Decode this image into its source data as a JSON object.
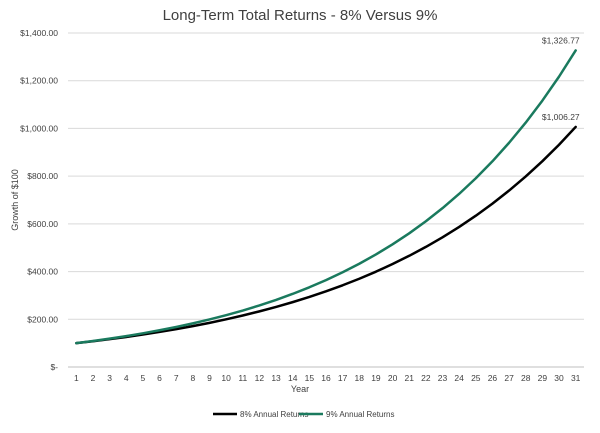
{
  "chart_data": {
    "type": "line",
    "title": "Long-Term Total Returns - 8% Versus 9%",
    "xlabel": "Year",
    "ylabel": "Growth of $100",
    "x": [
      1,
      2,
      3,
      4,
      5,
      6,
      7,
      8,
      9,
      10,
      11,
      12,
      13,
      14,
      15,
      16,
      17,
      18,
      19,
      20,
      21,
      22,
      23,
      24,
      25,
      26,
      27,
      28,
      29,
      30,
      31
    ],
    "ylim": [
      0,
      1400
    ],
    "yticks": [
      0,
      200,
      400,
      600,
      800,
      1000,
      1200,
      1400
    ],
    "ytick_labels": [
      "$-",
      "$200.00",
      "$400.00",
      "$600.00",
      "$800.00",
      "$1,000.00",
      "$1,200.00",
      "$1,400.00"
    ],
    "grid": true,
    "legend_position": "bottom-center",
    "series": [
      {
        "name": "8% Annual Returns",
        "color": "#000000",
        "values": [
          100.0,
          108.0,
          116.64,
          125.97,
          136.05,
          146.93,
          158.69,
          171.38,
          185.09,
          199.9,
          215.89,
          233.16,
          251.82,
          271.96,
          293.72,
          317.22,
          342.59,
          370.0,
          399.6,
          431.57,
          466.1,
          503.38,
          543.65,
          587.15,
          634.12,
          684.85,
          739.64,
          798.81,
          862.71,
          931.73,
          1006.27
        ],
        "end_label": "$1,006.27"
      },
      {
        "name": "9% Annual Returns",
        "color": "#1a7a5e",
        "values": [
          100.0,
          109.0,
          118.81,
          129.5,
          141.16,
          153.86,
          167.71,
          182.8,
          199.26,
          217.19,
          236.74,
          258.04,
          281.27,
          306.58,
          334.17,
          364.25,
          397.03,
          432.76,
          471.71,
          514.17,
          560.44,
          610.88,
          665.86,
          725.79,
          791.11,
          862.31,
          939.92,
          1024.51,
          1116.71,
          1217.22,
          1326.77
        ],
        "end_label": "$1,326.77"
      }
    ]
  }
}
